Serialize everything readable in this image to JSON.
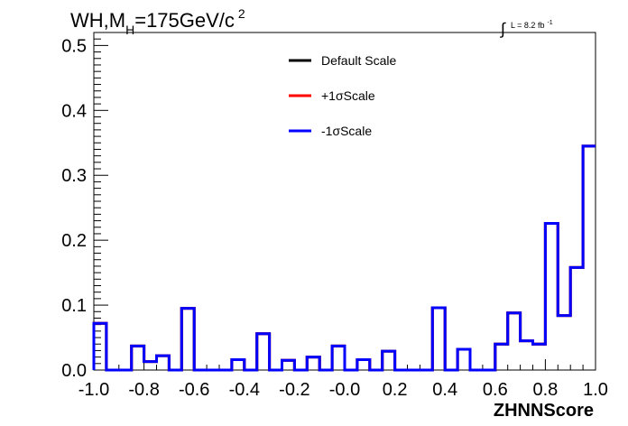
{
  "chart_data": {
    "type": "step-histogram",
    "title": {
      "prefix": "WH,M",
      "subscript": "H",
      "suffix": "=175GeV/c",
      "superscript": "2"
    },
    "annotation": {
      "integral": "∫",
      "lumi": "L = 8.2 fb",
      "lumi_sup": "-1"
    },
    "xlabel": "ZHNNScore",
    "ylabel": "",
    "xlim": [
      -1.0,
      1.0
    ],
    "ylim": [
      0.0,
      0.52
    ],
    "x_ticks": [
      "-1.0",
      "-0.8",
      "-0.6",
      "-0.4",
      "-0.2",
      "-0.0",
      "0.2",
      "0.4",
      "0.6",
      "0.8",
      "1.0"
    ],
    "y_ticks": [
      "0.0",
      "0.1",
      "0.2",
      "0.3",
      "0.4",
      "0.5"
    ],
    "bin_edges": [
      -1.0,
      -0.95,
      -0.9,
      -0.85,
      -0.8,
      -0.75,
      -0.7,
      -0.65,
      -0.6,
      -0.55,
      -0.5,
      -0.45,
      -0.4,
      -0.35,
      -0.3,
      -0.25,
      -0.2,
      -0.15,
      -0.1,
      -0.05,
      0.0,
      0.05,
      0.1,
      0.15,
      0.2,
      0.25,
      0.3,
      0.35,
      0.4,
      0.45,
      0.5,
      0.55,
      0.6,
      0.65,
      0.7,
      0.75,
      0.8,
      0.85,
      0.9,
      0.95,
      1.0
    ],
    "series": [
      {
        "name": "Default Scale",
        "color": "#000000",
        "values": [
          0.072,
          0.0,
          0.0,
          0.037,
          0.013,
          0.022,
          0.0,
          0.095,
          0.0,
          0.0,
          0.0,
          0.016,
          0.0,
          0.056,
          0.0,
          0.015,
          0.0,
          0.02,
          0.0,
          0.037,
          0.0,
          0.016,
          0.0,
          0.029,
          0.0,
          0.0,
          0.0,
          0.096,
          0.0,
          0.032,
          0.0,
          0.0,
          0.04,
          0.088,
          0.045,
          0.04,
          0.226,
          0.084,
          0.158,
          0.345
        ]
      },
      {
        "name": "+1σScale",
        "color": "#ff0000",
        "values": [
          0.072,
          0.0,
          0.0,
          0.037,
          0.013,
          0.022,
          0.0,
          0.095,
          0.0,
          0.0,
          0.0,
          0.016,
          0.0,
          0.056,
          0.0,
          0.015,
          0.0,
          0.02,
          0.0,
          0.037,
          0.0,
          0.016,
          0.0,
          0.029,
          0.0,
          0.0,
          0.0,
          0.096,
          0.0,
          0.032,
          0.0,
          0.0,
          0.04,
          0.088,
          0.045,
          0.04,
          0.226,
          0.084,
          0.158,
          0.345
        ]
      },
      {
        "name": "-1σScale",
        "color": "#0000ff",
        "values": [
          0.072,
          0.0,
          0.0,
          0.037,
          0.013,
          0.022,
          0.0,
          0.095,
          0.0,
          0.0,
          0.0,
          0.016,
          0.0,
          0.056,
          0.0,
          0.015,
          0.0,
          0.02,
          0.0,
          0.037,
          0.0,
          0.016,
          0.0,
          0.029,
          0.0,
          0.0,
          0.0,
          0.096,
          0.0,
          0.032,
          0.0,
          0.0,
          0.04,
          0.088,
          0.045,
          0.04,
          0.226,
          0.084,
          0.158,
          0.345
        ]
      }
    ],
    "legend": {
      "placement": "top-center",
      "entries": [
        "Default Scale",
        "+1σScale",
        "-1σScale"
      ]
    },
    "grid": false
  }
}
